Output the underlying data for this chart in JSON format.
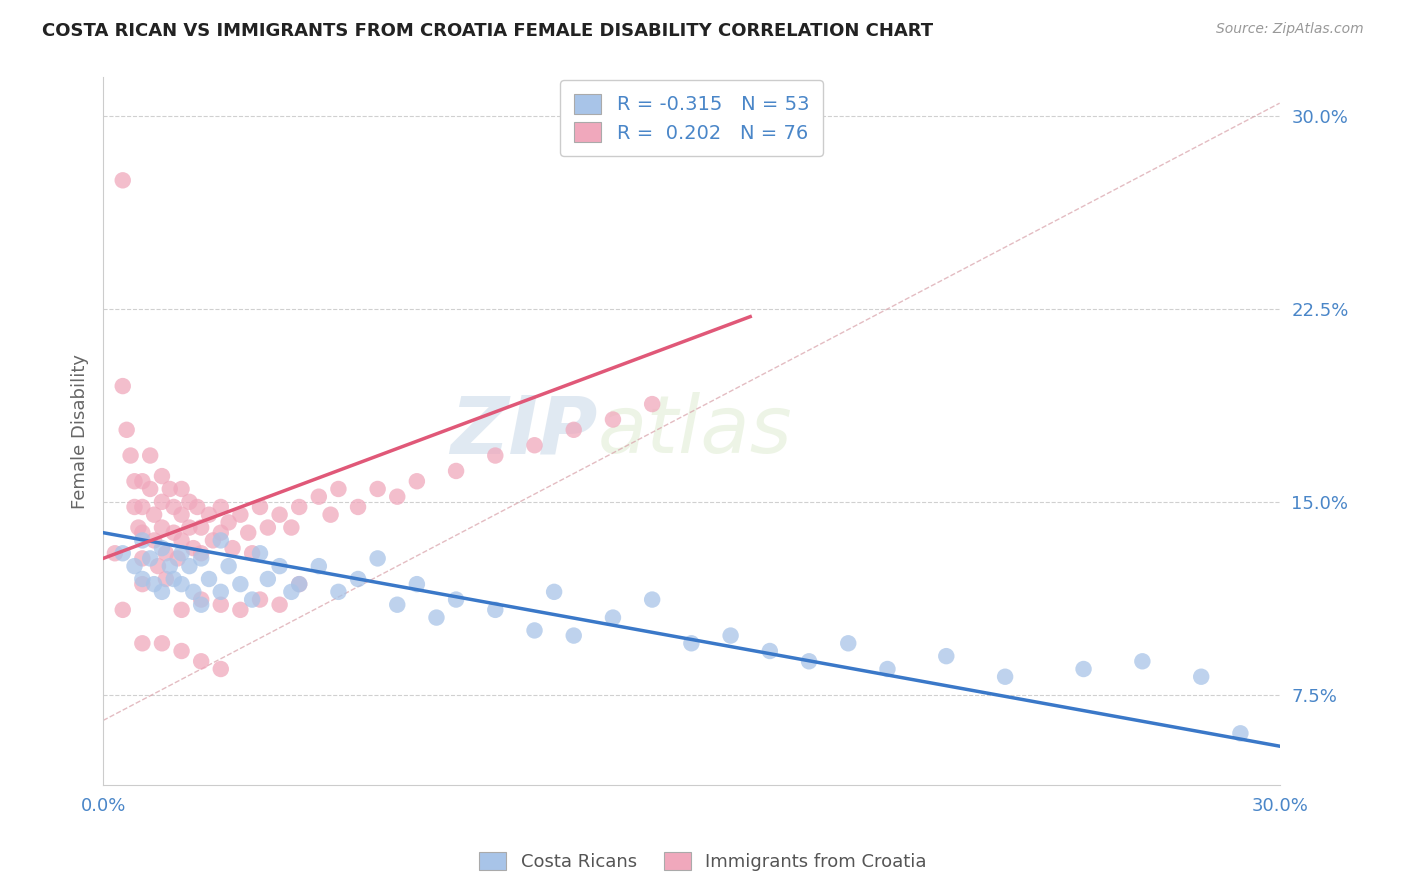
{
  "title": "COSTA RICAN VS IMMIGRANTS FROM CROATIA FEMALE DISABILITY CORRELATION CHART",
  "source": "Source: ZipAtlas.com",
  "ylabel": "Female Disability",
  "x_min": 0.0,
  "x_max": 0.3,
  "y_min": 0.04,
  "y_max": 0.315,
  "y_ticks": [
    0.075,
    0.15,
    0.225,
    0.3
  ],
  "y_tick_labels": [
    "7.5%",
    "15.0%",
    "22.5%",
    "30.0%"
  ],
  "blue_color": "#a8c4e8",
  "pink_color": "#f0a8bc",
  "blue_line_color": "#3a78c8",
  "pink_line_color": "#e05878",
  "R_blue": -0.315,
  "N_blue": 53,
  "R_pink": 0.202,
  "N_pink": 76,
  "legend_label_blue": "Costa Ricans",
  "legend_label_pink": "Immigrants from Croatia",
  "watermark_zip": "ZIP",
  "watermark_atlas": "atlas",
  "blue_scatter_x": [
    0.005,
    0.008,
    0.01,
    0.01,
    0.012,
    0.013,
    0.015,
    0.015,
    0.017,
    0.018,
    0.02,
    0.02,
    0.022,
    0.023,
    0.025,
    0.025,
    0.027,
    0.03,
    0.03,
    0.032,
    0.035,
    0.038,
    0.04,
    0.042,
    0.045,
    0.048,
    0.05,
    0.055,
    0.06,
    0.065,
    0.07,
    0.075,
    0.08,
    0.085,
    0.09,
    0.1,
    0.11,
    0.115,
    0.12,
    0.13,
    0.14,
    0.15,
    0.16,
    0.17,
    0.18,
    0.19,
    0.2,
    0.215,
    0.23,
    0.25,
    0.265,
    0.28,
    0.29
  ],
  "blue_scatter_y": [
    0.13,
    0.125,
    0.135,
    0.12,
    0.128,
    0.118,
    0.132,
    0.115,
    0.125,
    0.12,
    0.13,
    0.118,
    0.125,
    0.115,
    0.128,
    0.11,
    0.12,
    0.135,
    0.115,
    0.125,
    0.118,
    0.112,
    0.13,
    0.12,
    0.125,
    0.115,
    0.118,
    0.125,
    0.115,
    0.12,
    0.128,
    0.11,
    0.118,
    0.105,
    0.112,
    0.108,
    0.1,
    0.115,
    0.098,
    0.105,
    0.112,
    0.095,
    0.098,
    0.092,
    0.088,
    0.095,
    0.085,
    0.09,
    0.082,
    0.085,
    0.088,
    0.082,
    0.06
  ],
  "pink_scatter_x": [
    0.003,
    0.005,
    0.005,
    0.006,
    0.007,
    0.008,
    0.008,
    0.009,
    0.01,
    0.01,
    0.01,
    0.01,
    0.01,
    0.012,
    0.012,
    0.013,
    0.013,
    0.014,
    0.015,
    0.015,
    0.015,
    0.016,
    0.016,
    0.017,
    0.018,
    0.018,
    0.019,
    0.02,
    0.02,
    0.02,
    0.022,
    0.022,
    0.023,
    0.024,
    0.025,
    0.025,
    0.027,
    0.028,
    0.03,
    0.03,
    0.032,
    0.033,
    0.035,
    0.037,
    0.038,
    0.04,
    0.042,
    0.045,
    0.048,
    0.05,
    0.055,
    0.058,
    0.06,
    0.065,
    0.07,
    0.075,
    0.08,
    0.09,
    0.1,
    0.11,
    0.12,
    0.13,
    0.14,
    0.005,
    0.02,
    0.025,
    0.03,
    0.035,
    0.04,
    0.045,
    0.05,
    0.01,
    0.015,
    0.02,
    0.025,
    0.03
  ],
  "pink_scatter_y": [
    0.13,
    0.275,
    0.195,
    0.178,
    0.168,
    0.158,
    0.148,
    0.14,
    0.158,
    0.148,
    0.138,
    0.128,
    0.118,
    0.168,
    0.155,
    0.145,
    0.135,
    0.125,
    0.16,
    0.15,
    0.14,
    0.13,
    0.12,
    0.155,
    0.148,
    0.138,
    0.128,
    0.155,
    0.145,
    0.135,
    0.15,
    0.14,
    0.132,
    0.148,
    0.14,
    0.13,
    0.145,
    0.135,
    0.148,
    0.138,
    0.142,
    0.132,
    0.145,
    0.138,
    0.13,
    0.148,
    0.14,
    0.145,
    0.14,
    0.148,
    0.152,
    0.145,
    0.155,
    0.148,
    0.155,
    0.152,
    0.158,
    0.162,
    0.168,
    0.172,
    0.178,
    0.182,
    0.188,
    0.108,
    0.108,
    0.112,
    0.11,
    0.108,
    0.112,
    0.11,
    0.118,
    0.095,
    0.095,
    0.092,
    0.088,
    0.085
  ],
  "blue_line_x": [
    0.0,
    0.3
  ],
  "blue_line_y": [
    0.138,
    0.055
  ],
  "pink_line_x": [
    0.0,
    0.165
  ],
  "pink_line_y": [
    0.128,
    0.222
  ],
  "dash_line_x": [
    0.0,
    0.3
  ],
  "dash_line_y": [
    0.065,
    0.305
  ]
}
